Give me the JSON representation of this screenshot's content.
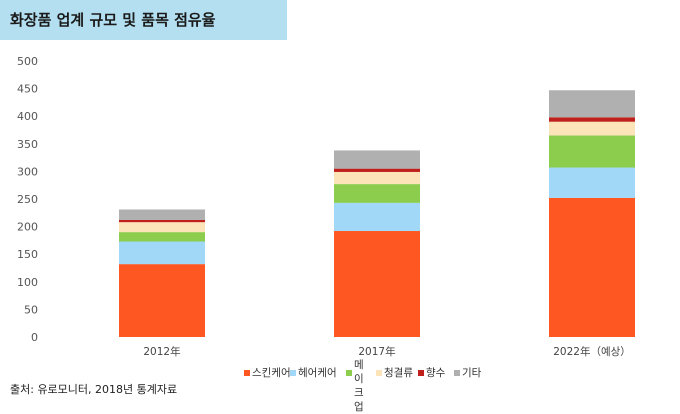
{
  "header": {
    "title": "화장품 업계 규모 및 품목 점유율"
  },
  "source": "출처: 유로모니터, 2018년 통계자료",
  "chart_data": {
    "type": "bar",
    "stacked": true,
    "categories": [
      "2012年",
      "2017年",
      "2022年（예상）"
    ],
    "ylim": [
      0,
      500
    ],
    "yticks": [
      0,
      50,
      100,
      150,
      200,
      250,
      300,
      350,
      400,
      450,
      500
    ],
    "grid": false,
    "legend_position": "bottom",
    "series": [
      {
        "name": "스킨케어",
        "color": "#fe5722",
        "values": [
          132,
          192,
          252
        ]
      },
      {
        "name": "헤어케어",
        "color": "#a1d8f7",
        "values": [
          41,
          51,
          55
        ]
      },
      {
        "name": "메이크업",
        "color": "#8ccd4e",
        "values": [
          17,
          34,
          58
        ]
      },
      {
        "name": "청결류",
        "color": "#fde3b8",
        "values": [
          18,
          22,
          25
        ]
      },
      {
        "name": "향수",
        "color": "#c0201b",
        "values": [
          4,
          6,
          8
        ]
      },
      {
        "name": "기타",
        "color": "#b0b0b0",
        "values": [
          19,
          33,
          49
        ]
      }
    ]
  }
}
